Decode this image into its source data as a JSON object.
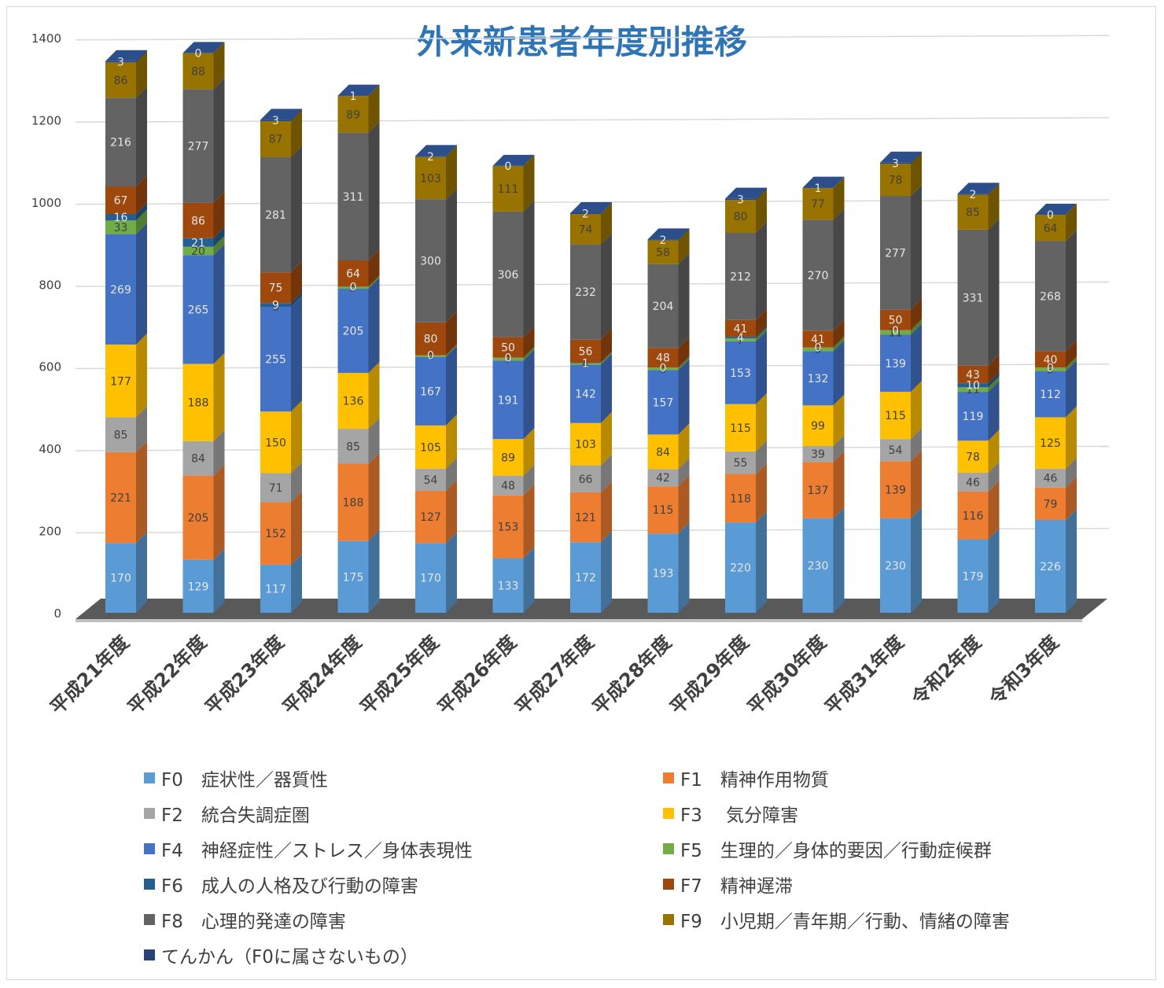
{
  "chart_data": {
    "type": "bar",
    "stacked": true,
    "title": "外来新患者年度別推移",
    "xlabel": "",
    "ylabel": "",
    "ylim": [
      0,
      1400
    ],
    "yticks": [
      "0",
      "200",
      "400",
      "600",
      "800",
      "1000",
      "1200",
      "1400"
    ],
    "grid": true,
    "legend_position": "bottom",
    "categories": [
      "平成21年度",
      "平成22年度",
      "平成23年度",
      "平成24年度",
      "平成25年度",
      "平成26年度",
      "平成27年度",
      "平成28年度",
      "平成29年度",
      "平成30年度",
      "平成31年度",
      "令和2年度",
      "令和3年度"
    ],
    "series": [
      {
        "name": "F0　症状性／器質性",
        "color": "#5b9bd5",
        "values": [
          170,
          129,
          117,
          175,
          170,
          133,
          172,
          193,
          220,
          230,
          230,
          179,
          226
        ]
      },
      {
        "name": "F1　精神作用物質",
        "color": "#ed7d31",
        "values": [
          221,
          205,
          152,
          188,
          127,
          153,
          121,
          115,
          118,
          137,
          139,
          116,
          79
        ]
      },
      {
        "name": "F2　統合失調症圏",
        "color": "#a5a5a5",
        "values": [
          85,
          84,
          71,
          85,
          54,
          48,
          66,
          42,
          55,
          39,
          54,
          46,
          46
        ]
      },
      {
        "name": "F3　 気分障害",
        "color": "#ffc000",
        "values": [
          177,
          188,
          150,
          136,
          105,
          89,
          103,
          84,
          115,
          99,
          115,
          78,
          125
        ]
      },
      {
        "name": "F4　神経症性／ストレス／身体表現性",
        "color": "#4472c4",
        "values": [
          269,
          265,
          255,
          205,
          167,
          191,
          142,
          157,
          153,
          132,
          139,
          119,
          112
        ]
      },
      {
        "name": "F5　生理的／身体的要因／行動症候群",
        "color": "#70ad47",
        "values": [
          33,
          20,
          0,
          5,
          4,
          7,
          4,
          6,
          7,
          9,
          11,
          11,
          9
        ]
      },
      {
        "name": "F6　成人の人格及び行動の障害",
        "color": "#255e91",
        "values": [
          16,
          21,
          9,
          0,
          0,
          0,
          1,
          0,
          4,
          0,
          0,
          10,
          0
        ]
      },
      {
        "name": "F7　精神遅滞",
        "color": "#9e480e",
        "values": [
          67,
          86,
          75,
          64,
          80,
          50,
          56,
          48,
          41,
          41,
          50,
          43,
          40
        ]
      },
      {
        "name": "F8　心理的発達の障害",
        "color": "#636363",
        "values": [
          216,
          277,
          281,
          311,
          300,
          306,
          232,
          204,
          212,
          270,
          277,
          331,
          268
        ]
      },
      {
        "name": "F9　小児期／青年期／行動、情緒の障害",
        "color": "#997300",
        "values": [
          86,
          88,
          87,
          89,
          103,
          111,
          74,
          58,
          80,
          77,
          78,
          85,
          64
        ]
      },
      {
        "name": "てんかん（F0に属さないもの）",
        "color": "#264478",
        "values": [
          3,
          0,
          3,
          1,
          2,
          0,
          2,
          2,
          3,
          1,
          3,
          2,
          0
        ]
      }
    ]
  }
}
